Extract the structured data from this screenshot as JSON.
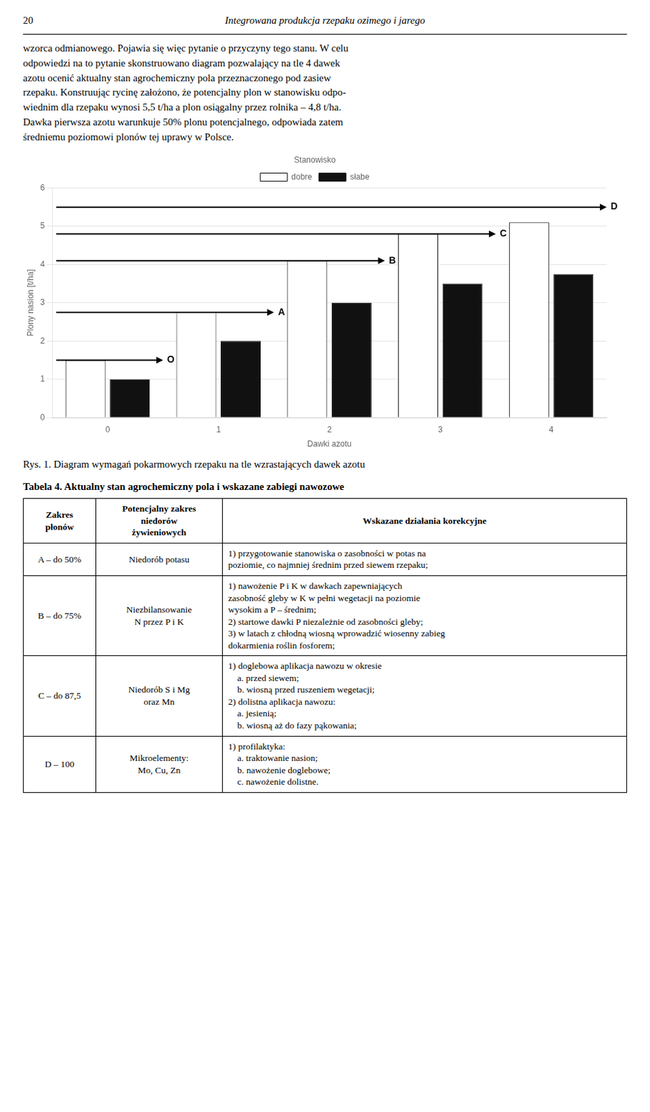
{
  "page_header": {
    "number": "20",
    "title": "Integrowana produkcja rzepaku ozimego i jarego"
  },
  "paragraph": "wzorca odmianowego. Pojawia się więc pytanie o przyczyny tego stanu. W celu\nodpowiedzi na to pytanie skonstruowano diagram pozwalający na tle 4 dawek\nazotu ocenić aktualny stan agrochemiczny pola przeznaczonego pod zasiew\nrzepaku. Konstruując rycinę założono, że potencjalny plon w stanowisku odpo-\nwiednim dla rzepaku wynosi 5,5 t/ha a plon osiągalny przez rolnika – 4,8 t/ha.\nDawka pierwsza azotu warunkuje 50% plonu potencjalnego, odpowiada zatem\nśredniemu poziomowi plonów tej uprawy w Polsce.",
  "chart_data": {
    "type": "bar",
    "categories": [
      "0",
      "1",
      "2",
      "3",
      "4"
    ],
    "xlabel": "Dawki azotu",
    "ylabel": "Plony nasion [t/ha]",
    "legend_title": "Stanowisko",
    "series": [
      {
        "name": "dobre",
        "color": "#ffffff",
        "values": [
          1.5,
          2.75,
          4.1,
          4.8,
          5.1
        ]
      },
      {
        "name": "słabe",
        "color": "#111111",
        "values": [
          1.0,
          2.0,
          3.0,
          3.5,
          3.75
        ]
      }
    ],
    "ylim": [
      0,
      6
    ],
    "yticks": [
      0,
      1,
      2,
      3,
      4,
      5,
      6
    ],
    "grid": true,
    "legend": "top",
    "annotations": [
      {
        "type": "arrow",
        "label": "O",
        "y": 1.5,
        "category": "0"
      },
      {
        "type": "arrow",
        "label": "A",
        "y": 2.75,
        "category": "1"
      },
      {
        "type": "arrow",
        "label": "B",
        "y": 4.1,
        "category": "2"
      },
      {
        "type": "arrow",
        "label": "C",
        "y": 4.8,
        "category": "3"
      },
      {
        "type": "arrow",
        "label": "D",
        "y": 5.5,
        "category": "4"
      }
    ]
  },
  "figure_caption": "Rys. 1. Diagram wymagań pokarmowych rzepaku na tle wzrastających dawek azotu",
  "table": {
    "title": "Tabela 4. Aktualny stan agrochemiczny pola i wskazane zabiegi nawozowe",
    "columns": [
      "Zakres\npłonów",
      "Potencjalny zakres\nniedorów\nżywieniowych",
      "Wskazane działania korekcyjne"
    ],
    "rows": [
      [
        "A – do 50%",
        "Niedorób potasu",
        "1) przygotowanie stanowiska o zasobności w potas na\npoziomie, co najmniej średnim przed siewem rzepaku;"
      ],
      [
        "B – do 75%",
        "Niezbilansowanie\nN przez P i K",
        "1) nawożenie P i K w dawkach zapewniających\nzasobność gleby w K w pełni wegetacji na poziomie\nwysokim a P – średnim;\n2) startowe dawki P niezależnie od zasobności gleby;\n3) w latach z chłodną wiosną wprowadzić wiosenny zabieg\ndokarmienia roślin fosforem;"
      ],
      [
        "C – do 87,5",
        "Niedorób S i Mg\noraz Mn",
        "1) doglebowa aplikacja nawozu w okresie\n    a. przed siewem;\n    b. wiosną przed ruszeniem wegetacji;\n2) dolistna aplikacja nawozu:\n    a. jesienią;\n    b. wiosną aż do fazy pąkowania;"
      ],
      [
        "D – 100",
        "Mikroelementy:\nMo, Cu, Zn",
        "1) profilaktyka:\n    a. traktowanie nasion;\n    b. nawożenie doglebowe;\n    c. nawożenie dolistne."
      ]
    ]
  }
}
